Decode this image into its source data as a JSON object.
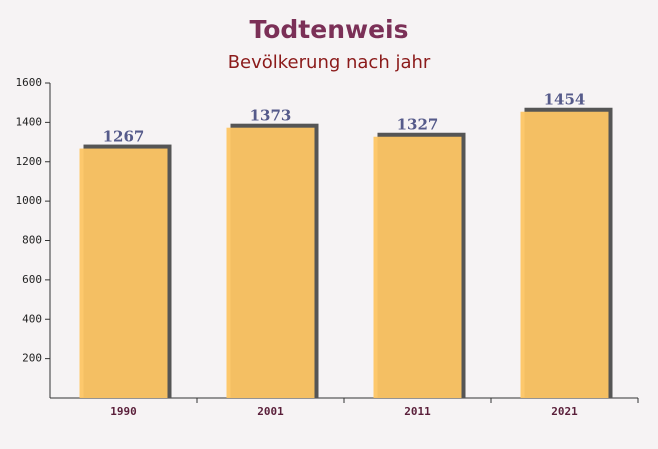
{
  "chart_data": {
    "type": "bar",
    "title": "Todtenweis",
    "subtitle": "Bevölkerung nach jahr",
    "categories": [
      "1990",
      "2001",
      "2011",
      "2021"
    ],
    "values": [
      1267,
      1373,
      1327,
      1454
    ],
    "color": "#fdc564",
    "ylim": [
      0,
      1600
    ],
    "yticks": [
      200,
      400,
      600,
      800,
      1000,
      1200,
      1400,
      1600
    ]
  }
}
